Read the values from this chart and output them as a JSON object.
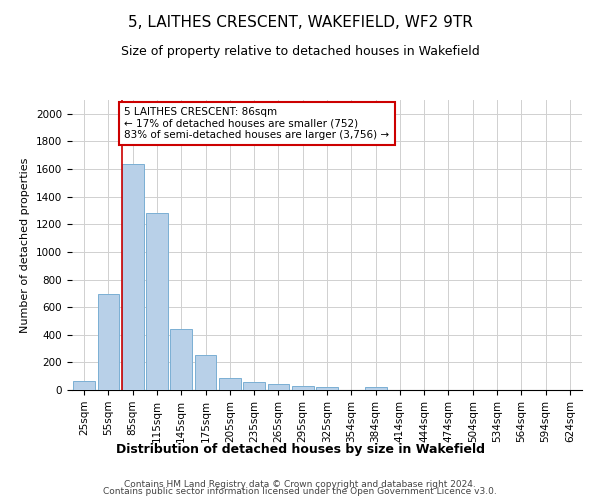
{
  "title1": "5, LAITHES CRESCENT, WAKEFIELD, WF2 9TR",
  "title2": "Size of property relative to detached houses in Wakefield",
  "xlabel": "Distribution of detached houses by size in Wakefield",
  "ylabel": "Number of detached properties",
  "categories": [
    "25sqm",
    "55sqm",
    "85sqm",
    "115sqm",
    "145sqm",
    "175sqm",
    "205sqm",
    "235sqm",
    "265sqm",
    "295sqm",
    "325sqm",
    "354sqm",
    "384sqm",
    "414sqm",
    "444sqm",
    "474sqm",
    "504sqm",
    "534sqm",
    "564sqm",
    "594sqm",
    "624sqm"
  ],
  "values": [
    65,
    695,
    1635,
    1285,
    440,
    255,
    90,
    55,
    45,
    30,
    25,
    0,
    20,
    0,
    0,
    0,
    0,
    0,
    0,
    0,
    0
  ],
  "bar_color": "#b8d0e8",
  "bar_edge_color": "#7aafd4",
  "vertical_line_x": 2.0,
  "annotation_text": "5 LAITHES CRESCENT: 86sqm\n← 17% of detached houses are smaller (752)\n83% of semi-detached houses are larger (3,756) →",
  "annotation_box_color": "#ffffff",
  "annotation_box_edge_color": "#cc0000",
  "vline_color": "#cc0000",
  "footer1": "Contains HM Land Registry data © Crown copyright and database right 2024.",
  "footer2": "Contains public sector information licensed under the Open Government Licence v3.0.",
  "ylim": [
    0,
    2100
  ],
  "yticks": [
    0,
    200,
    400,
    600,
    800,
    1000,
    1200,
    1400,
    1600,
    1800,
    2000
  ],
  "background_color": "#ffffff",
  "grid_color": "#d0d0d0",
  "title1_fontsize": 11,
  "title2_fontsize": 9,
  "xlabel_fontsize": 9,
  "ylabel_fontsize": 8,
  "tick_fontsize": 7.5,
  "footer_fontsize": 6.5
}
